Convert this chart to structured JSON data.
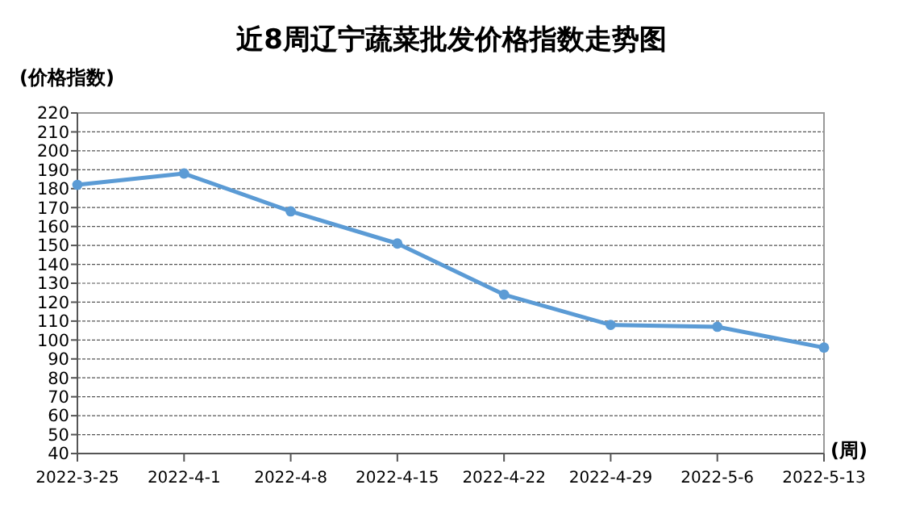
{
  "chart_data": {
    "type": "line",
    "title": "近8周辽宁蔬菜批发价格指数走势图",
    "ylabel": "(价格指数)",
    "xlabel": "(周)",
    "categories": [
      "2022-3-25",
      "2022-4-1",
      "2022-4-8",
      "2022-4-15",
      "2022-4-22",
      "2022-4-29",
      "2022-5-6",
      "2022-5-13"
    ],
    "series": [
      {
        "color": "#5b9bd5",
        "values": [
          182,
          188,
          168,
          151,
          124,
          108,
          107,
          96
        ]
      }
    ],
    "ylim": [
      40,
      220
    ],
    "yticks": [
      40,
      50,
      60,
      70,
      80,
      90,
      100,
      110,
      120,
      130,
      140,
      150,
      160,
      170,
      180,
      190,
      200,
      210,
      220
    ],
    "grid": "y",
    "marker": "circle",
    "line_style": "solid"
  }
}
